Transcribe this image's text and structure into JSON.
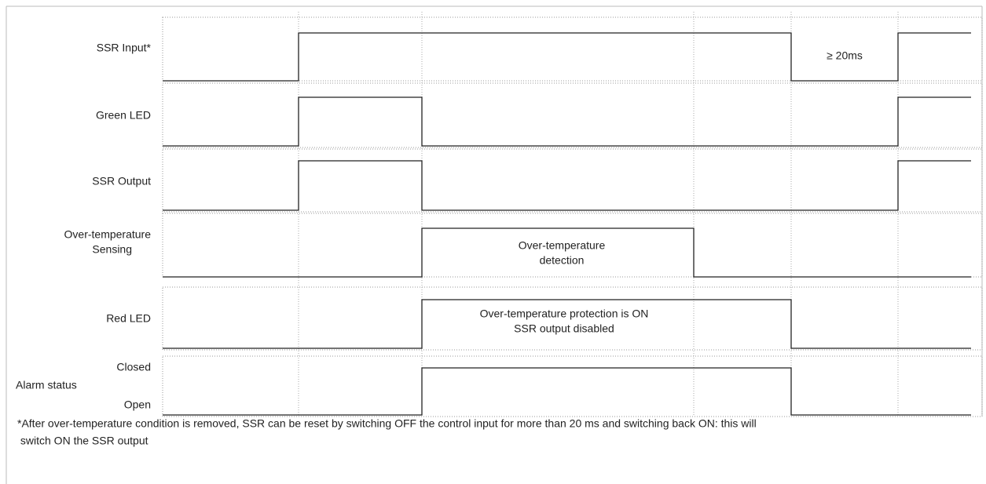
{
  "signals": [
    {
      "label": [
        "SSR Input*"
      ]
    },
    {
      "label": [
        "Green LED"
      ]
    },
    {
      "label": [
        "SSR Output"
      ]
    },
    {
      "label": [
        "Over-temperature",
        "Sensing"
      ]
    },
    {
      "label": [
        "Red LED"
      ]
    },
    {
      "label": [
        "Alarm status"
      ],
      "levels": [
        "Closed",
        "Open"
      ]
    }
  ],
  "annotations": {
    "pulse_width": "≥ 20ms",
    "detection": [
      "Over-temperature",
      "detection"
    ],
    "protection": [
      "Over-temperature protection is ON",
      "SSR output disabled"
    ]
  },
  "footnote": [
    "*After over-temperature condition is removed, SSR can be reset by switching OFF the control input for more than 20 ms and switching back ON: this will",
    " switch ON the SSR output"
  ]
}
